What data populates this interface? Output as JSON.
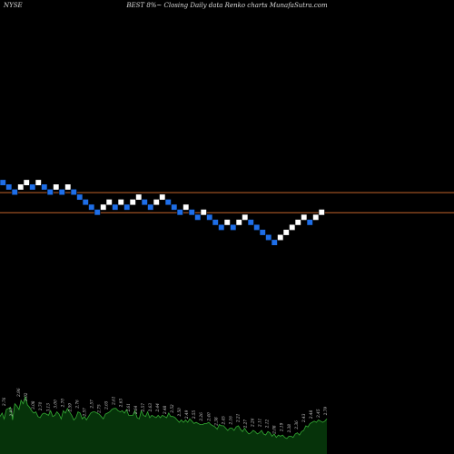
{
  "header": {
    "exchange": "NYSE",
    "title": "BEST 8%~ Closing Daily data Renko charts MunafaSutra.com"
  },
  "chart_data": {
    "type": "renko",
    "title": "BEST 8%~ Closing Daily data Renko charts MunafaSutra.com",
    "colors": {
      "up": "#ffffff",
      "down": "#1e6ee8",
      "background": "#000000",
      "ref_lines": "#c0622b",
      "volume_fill": "#06330a",
      "volume_line": "#33aa33",
      "label": "#cccccc"
    },
    "reference_lines": [
      2.9,
      2.54
    ],
    "bricks": [
      {
        "dir": "down",
        "value": 3.08
      },
      {
        "dir": "down",
        "value": 3.0
      },
      {
        "dir": "down",
        "value": 2.91
      },
      {
        "dir": "up",
        "value": 3.0
      },
      {
        "dir": "up",
        "value": 3.08
      },
      {
        "dir": "down",
        "value": 3.0
      },
      {
        "dir": "up",
        "value": 3.08
      },
      {
        "dir": "down",
        "value": 3.0
      },
      {
        "dir": "down",
        "value": 2.91
      },
      {
        "dir": "up",
        "value": 3.0
      },
      {
        "dir": "down",
        "value": 2.91
      },
      {
        "dir": "up",
        "value": 3.0
      },
      {
        "dir": "down",
        "value": 2.91
      },
      {
        "dir": "down",
        "value": 2.82
      },
      {
        "dir": "down",
        "value": 2.73
      },
      {
        "dir": "down",
        "value": 2.64
      },
      {
        "dir": "down",
        "value": 2.55
      },
      {
        "dir": "up",
        "value": 2.64
      },
      {
        "dir": "up",
        "value": 2.73
      },
      {
        "dir": "down",
        "value": 2.64
      },
      {
        "dir": "up",
        "value": 2.73
      },
      {
        "dir": "down",
        "value": 2.64
      },
      {
        "dir": "up",
        "value": 2.73
      },
      {
        "dir": "up",
        "value": 2.82
      },
      {
        "dir": "down",
        "value": 2.73
      },
      {
        "dir": "down",
        "value": 2.64
      },
      {
        "dir": "up",
        "value": 2.73
      },
      {
        "dir": "up",
        "value": 2.82
      },
      {
        "dir": "down",
        "value": 2.73
      },
      {
        "dir": "down",
        "value": 2.64
      },
      {
        "dir": "down",
        "value": 2.55
      },
      {
        "dir": "up",
        "value": 2.64
      },
      {
        "dir": "down",
        "value": 2.55
      },
      {
        "dir": "down",
        "value": 2.46
      },
      {
        "dir": "up",
        "value": 2.55
      },
      {
        "dir": "down",
        "value": 2.46
      },
      {
        "dir": "down",
        "value": 2.37
      },
      {
        "dir": "down",
        "value": 2.28
      },
      {
        "dir": "up",
        "value": 2.37
      },
      {
        "dir": "down",
        "value": 2.28
      },
      {
        "dir": "up",
        "value": 2.37
      },
      {
        "dir": "up",
        "value": 2.46
      },
      {
        "dir": "down",
        "value": 2.37
      },
      {
        "dir": "down",
        "value": 2.28
      },
      {
        "dir": "down",
        "value": 2.19
      },
      {
        "dir": "down",
        "value": 2.1
      },
      {
        "dir": "down",
        "value": 2.01
      },
      {
        "dir": "up",
        "value": 2.1
      },
      {
        "dir": "up",
        "value": 2.19
      },
      {
        "dir": "up",
        "value": 2.28
      },
      {
        "dir": "up",
        "value": 2.37
      },
      {
        "dir": "up",
        "value": 2.46
      },
      {
        "dir": "down",
        "value": 2.37
      },
      {
        "dir": "up",
        "value": 2.46
      },
      {
        "dir": "up",
        "value": 2.55
      }
    ],
    "volume": {
      "values": [
        30,
        33,
        28,
        36,
        37,
        38,
        27,
        41,
        39,
        36,
        44,
        41,
        47,
        40,
        38,
        35,
        33,
        34,
        30,
        29,
        32,
        33,
        32,
        31,
        35,
        30,
        31,
        34,
        32,
        28,
        35,
        33,
        37,
        34,
        31,
        27,
        29,
        34,
        33,
        28,
        30,
        27,
        30,
        33,
        34,
        34,
        33,
        32,
        30,
        28,
        32,
        33,
        34,
        36,
        37,
        37,
        35,
        34,
        35,
        33,
        36,
        31,
        31,
        31,
        35,
        29,
        28,
        35,
        31,
        30,
        34,
        29,
        31,
        30,
        29,
        31,
        29,
        31,
        30,
        29,
        33,
        30,
        30,
        29,
        27,
        25,
        27,
        25,
        27,
        25,
        28,
        26,
        24,
        25,
        24,
        23,
        23,
        24,
        24,
        25,
        23,
        22,
        21,
        19,
        23,
        22,
        22,
        20,
        18,
        20,
        20,
        18,
        21,
        22,
        19,
        17,
        20,
        17,
        15,
        16,
        18,
        17,
        15,
        16,
        18,
        15,
        14,
        17,
        16,
        13,
        15,
        12,
        14,
        13,
        14,
        12,
        11,
        13,
        13,
        12,
        15,
        16,
        14,
        17,
        18,
        22,
        21,
        24,
        25,
        26,
        25,
        27,
        26,
        25,
        26,
        28
      ],
      "labels": [
        "2.76",
        "2.97",
        "2.96",
        "3.02",
        "3.08",
        "2.70",
        "3.13",
        "3.00",
        "2.70",
        "2.59",
        "2.76",
        "2.57",
        "2.57",
        "2.75",
        "2.65",
        "2.61",
        "2.63",
        "2.61",
        "2.64",
        "2.57",
        "2.63",
        "2.44",
        "2.48",
        "2.52",
        "2.50",
        "2.49",
        "2.55",
        "2.26",
        "2.40",
        "2.38",
        "2.45",
        "2.16",
        "2.21",
        "2.27",
        "2.26",
        "2.11",
        "2.12",
        "2.08",
        "2.19",
        "2.38",
        "2.36",
        "2.43",
        "2.48",
        "2.45",
        "2.79"
      ]
    }
  }
}
